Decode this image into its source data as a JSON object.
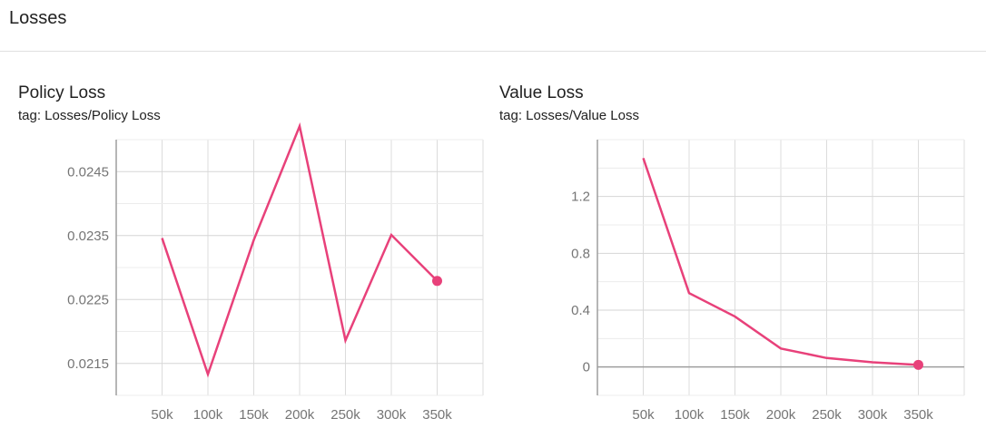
{
  "section": {
    "title": "Losses"
  },
  "chart_data": [
    {
      "type": "line",
      "title": "Policy Loss",
      "subtitle": "tag: Losses/Policy Loss",
      "x": [
        50000,
        100000,
        150000,
        200000,
        250000,
        300000,
        350000
      ],
      "xticks": [
        50000,
        100000,
        150000,
        200000,
        250000,
        300000,
        350000
      ],
      "xtick_labels": [
        "50k",
        "100k",
        "150k",
        "200k",
        "250k",
        "300k",
        "350k"
      ],
      "yticks": [
        0.0215,
        0.0225,
        0.0235,
        0.0245
      ],
      "ytick_labels": [
        "0.0215",
        "0.0225",
        "0.0235",
        "0.0245"
      ],
      "xlim": [
        0,
        400000
      ],
      "ylim": [
        0.021,
        0.025
      ],
      "grid": true,
      "series": [
        {
          "color": "#e8417a",
          "values": [
            0.02346,
            0.02133,
            0.02343,
            0.02521,
            0.02186,
            0.02351,
            0.02279
          ]
        }
      ]
    },
    {
      "type": "line",
      "title": "Value Loss",
      "subtitle": "tag: Losses/Value Loss",
      "x": [
        50000,
        100000,
        150000,
        200000,
        250000,
        300000,
        350000
      ],
      "xticks": [
        50000,
        100000,
        150000,
        200000,
        250000,
        300000,
        350000
      ],
      "xtick_labels": [
        "50k",
        "100k",
        "150k",
        "200k",
        "250k",
        "300k",
        "350k"
      ],
      "yticks": [
        0,
        0.4,
        0.8,
        1.2
      ],
      "ytick_labels": [
        "0",
        "0.4",
        "0.8",
        "1.2"
      ],
      "xlim": [
        0,
        400000
      ],
      "ylim": [
        -0.2,
        1.6
      ],
      "grid": true,
      "series": [
        {
          "color": "#e8417a",
          "values": [
            1.47,
            0.52,
            0.355,
            0.13,
            0.063,
            0.033,
            0.015
          ]
        }
      ]
    }
  ]
}
